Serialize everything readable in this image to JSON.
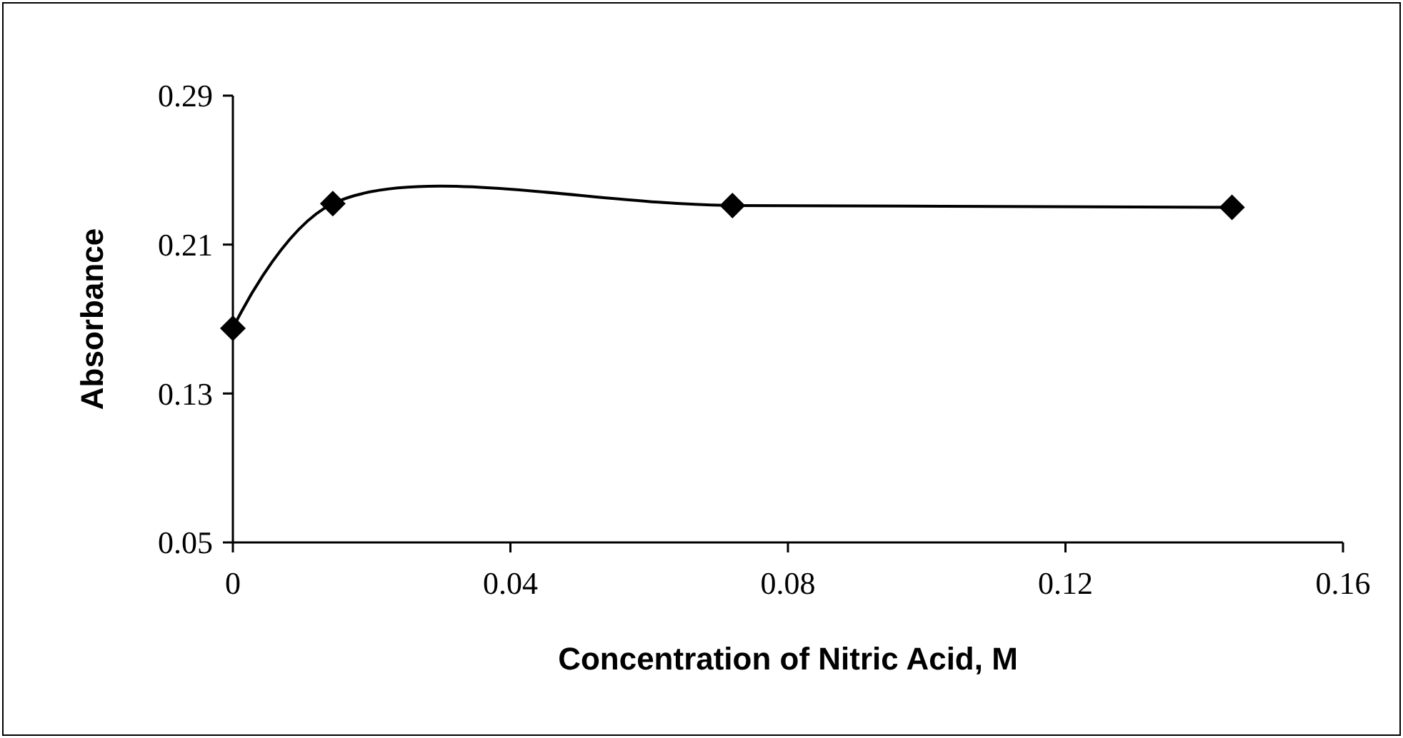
{
  "chart_data": {
    "type": "line",
    "xlabel": "Concentration of Nitric Acid, M",
    "ylabel": "Absorbance",
    "x": [
      0,
      0.0144,
      0.072,
      0.144
    ],
    "series": [
      {
        "color": "#000000",
        "values": [
          0.165,
          0.232,
          0.231,
          0.23
        ]
      }
    ],
    "xlim": [
      0,
      0.16
    ],
    "xticks": [
      0,
      0.04,
      0.08,
      0.12,
      0.16
    ],
    "ylim": [
      0.05,
      0.29
    ],
    "yticks": [
      0.05,
      0.13,
      0.21,
      0.29
    ],
    "marker": "diamond",
    "line_style": "solid"
  }
}
